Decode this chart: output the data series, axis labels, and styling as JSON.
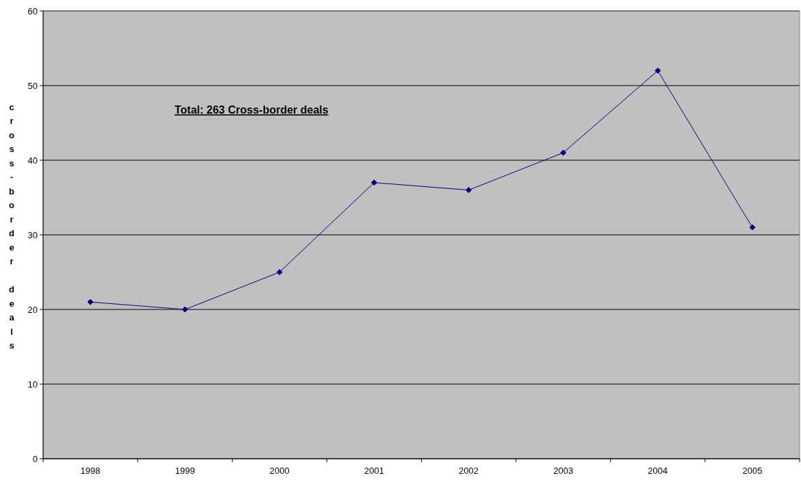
{
  "chart_data": {
    "type": "line",
    "categories": [
      "1998",
      "1999",
      "2000",
      "2001",
      "2002",
      "2003",
      "2004",
      "2005"
    ],
    "series": [
      {
        "color": "#000080",
        "values": [
          21,
          20,
          25,
          37,
          36,
          41,
          52,
          31
        ]
      }
    ],
    "ylabel": "cross-border deals",
    "ylim": [
      0,
      60
    ],
    "yticks": [
      0,
      10,
      20,
      30,
      40,
      50,
      60
    ],
    "grid": "y",
    "marker": "diamond",
    "line_style": "solid",
    "annotations": [
      "Total: 263 Cross-border deals"
    ]
  }
}
